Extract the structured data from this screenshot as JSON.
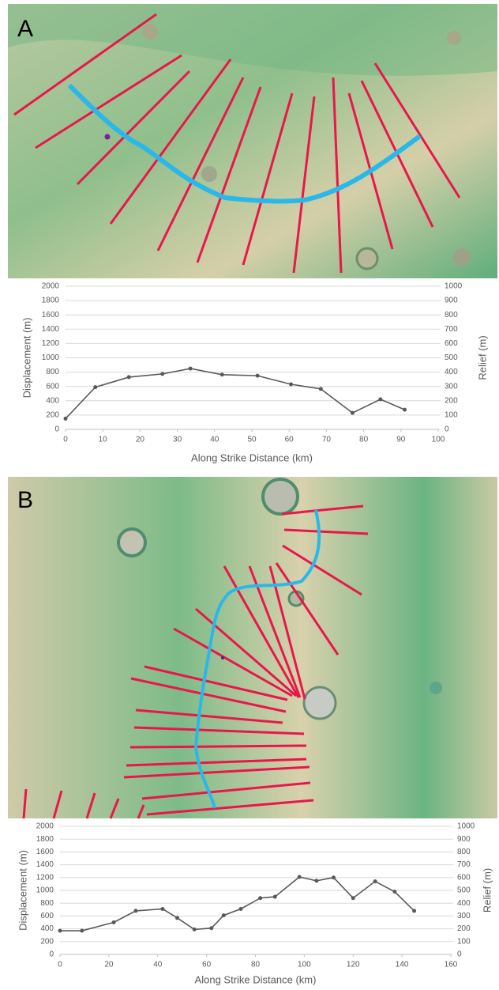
{
  "chart_data": [
    {
      "type": "line",
      "label": "A",
      "x": [
        0,
        8,
        17,
        26,
        33.5,
        42,
        51.5,
        60.5,
        68.5,
        77,
        84.5,
        91
      ],
      "series": [
        {
          "color": "#595959",
          "values": [
            150,
            590,
            730,
            775,
            850,
            765,
            750,
            630,
            565,
            230,
            420,
            275
          ]
        }
      ],
      "xlim": [
        0,
        100
      ],
      "xticks": [
        0,
        10,
        20,
        30,
        40,
        50,
        60,
        70,
        80,
        90,
        100
      ],
      "ylim": [
        0,
        2000
      ],
      "yticks": [
        0,
        200,
        400,
        600,
        800,
        1000,
        1200,
        1400,
        1600,
        1800,
        2000
      ],
      "y2lim": [
        0,
        1000
      ],
      "y2ticks": [
        0,
        100,
        200,
        300,
        400,
        500,
        600,
        700,
        800,
        900,
        1000
      ],
      "xlabel": "Along Strike Distance (km)",
      "ylabel": "Displacement (m)",
      "y2label": "Relief (m)",
      "grid": true
    },
    {
      "type": "line",
      "label": "B",
      "x": [
        0,
        9,
        22,
        31,
        42,
        48,
        55,
        62,
        67,
        74,
        82,
        88,
        98,
        105,
        112,
        120,
        129,
        137,
        145
      ],
      "series": [
        {
          "color": "#595959",
          "values": [
            370,
            370,
            500,
            680,
            710,
            570,
            390,
            410,
            610,
            710,
            880,
            900,
            1210,
            1150,
            1200,
            880,
            1140,
            980,
            680
          ]
        }
      ],
      "xlim": [
        0,
        160
      ],
      "xticks": [
        0,
        20,
        40,
        60,
        80,
        100,
        120,
        140,
        160
      ],
      "ylim": [
        0,
        2000
      ],
      "yticks": [
        0,
        200,
        400,
        600,
        800,
        1000,
        1200,
        1400,
        1600,
        1800,
        2000
      ],
      "y2lim": [
        0,
        1000
      ],
      "y2ticks": [
        0,
        100,
        200,
        300,
        400,
        500,
        600,
        700,
        800,
        900,
        1000
      ],
      "xlabel": "Along Strike Distance (km)",
      "ylabel": "Displacement (m)",
      "y2label": "Relief (m)",
      "grid": true
    }
  ]
}
